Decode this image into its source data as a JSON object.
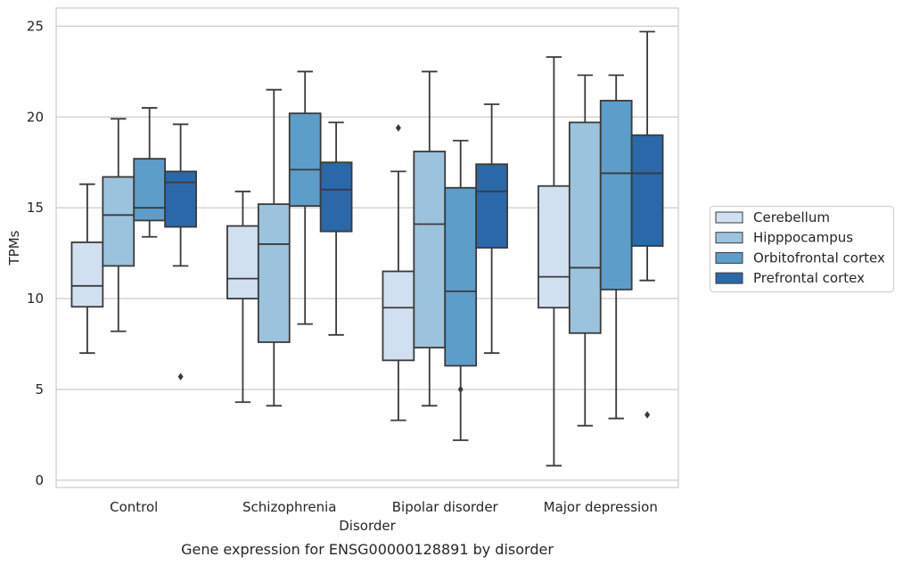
{
  "chart_data": {
    "type": "box",
    "title": "",
    "caption": "Gene expression for ENSG00000128891 by disorder",
    "xlabel": "Disorder",
    "ylabel": "TPMs",
    "ylim": [
      -0.4,
      26
    ],
    "yticks": [
      0,
      5,
      10,
      15,
      20,
      25
    ],
    "grid": "horizontal",
    "legend_position": "right",
    "categories": [
      "Control",
      "Schizophrenia",
      "Bipolar disorder",
      "Major depression"
    ],
    "series": [
      {
        "name": "Cerebellum",
        "color": "#d1e0f0",
        "boxes": [
          {
            "whisker_low": 7.0,
            "q1": 9.55,
            "median": 10.7,
            "q3": 13.1,
            "whisker_high": 16.3,
            "outliers": []
          },
          {
            "whisker_low": 4.3,
            "q1": 10.0,
            "median": 11.1,
            "q3": 14.0,
            "whisker_high": 15.9,
            "outliers": []
          },
          {
            "whisker_low": 3.3,
            "q1": 6.6,
            "median": 9.5,
            "q3": 11.5,
            "whisker_high": 17.0,
            "outliers": [
              19.4
            ]
          },
          {
            "whisker_low": 0.8,
            "q1": 9.5,
            "median": 11.2,
            "q3": 16.2,
            "whisker_high": 23.3,
            "outliers": []
          }
        ]
      },
      {
        "name": "Hipppocampus",
        "color": "#9cc3de",
        "boxes": [
          {
            "whisker_low": 8.2,
            "q1": 11.8,
            "median": 14.6,
            "q3": 16.7,
            "whisker_high": 19.9,
            "outliers": []
          },
          {
            "whisker_low": 4.1,
            "q1": 7.6,
            "median": 13.0,
            "q3": 15.2,
            "whisker_high": 21.5,
            "outliers": []
          },
          {
            "whisker_low": 4.1,
            "q1": 7.3,
            "median": 14.1,
            "q3": 18.1,
            "whisker_high": 22.5,
            "outliers": []
          },
          {
            "whisker_low": 3.0,
            "q1": 8.1,
            "median": 11.7,
            "q3": 19.7,
            "whisker_high": 22.3,
            "outliers": []
          }
        ]
      },
      {
        "name": "Orbitofrontal cortex",
        "color": "#5d9dc9",
        "boxes": [
          {
            "whisker_low": 13.4,
            "q1": 14.3,
            "median": 15.0,
            "q3": 17.7,
            "whisker_high": 20.5,
            "outliers": []
          },
          {
            "whisker_low": 8.6,
            "q1": 15.1,
            "median": 17.1,
            "q3": 20.2,
            "whisker_high": 22.5,
            "outliers": []
          },
          {
            "whisker_low": 2.2,
            "q1": 6.3,
            "median": 10.4,
            "q3": 16.1,
            "whisker_high": 18.7,
            "outliers": [
              5.0
            ]
          },
          {
            "whisker_low": 3.4,
            "q1": 10.5,
            "median": 16.9,
            "q3": 20.9,
            "whisker_high": 22.3,
            "outliers": []
          }
        ]
      },
      {
        "name": "Prefrontal cortex",
        "color": "#2b68a9",
        "boxes": [
          {
            "whisker_low": 11.8,
            "q1": 13.95,
            "median": 16.4,
            "q3": 17.0,
            "whisker_high": 19.6,
            "outliers": [
              5.7
            ]
          },
          {
            "whisker_low": 8.0,
            "q1": 13.7,
            "median": 16.0,
            "q3": 17.5,
            "whisker_high": 19.7,
            "outliers": []
          },
          {
            "whisker_low": 7.0,
            "q1": 12.8,
            "median": 15.9,
            "q3": 17.4,
            "whisker_high": 20.7,
            "outliers": []
          },
          {
            "whisker_low": 11.0,
            "q1": 12.9,
            "median": 16.9,
            "q3": 19.0,
            "whisker_high": 24.7,
            "outliers": [
              3.6
            ]
          }
        ]
      }
    ]
  }
}
